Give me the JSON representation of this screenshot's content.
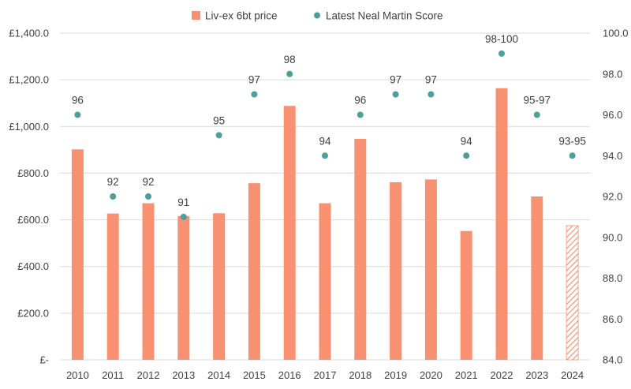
{
  "chart_data": {
    "type": "bar",
    "categories": [
      "2010",
      "2011",
      "2012",
      "2013",
      "2014",
      "2015",
      "2016",
      "2017",
      "2018",
      "2019",
      "2020",
      "2021",
      "2022",
      "2023",
      "2024"
    ],
    "series": [
      {
        "name": "Liv-ex 6bt price",
        "kind": "bar",
        "axis": "left",
        "color": "#F79172",
        "values": [
          902,
          627,
          671,
          616,
          628,
          757,
          1088,
          671,
          947,
          761,
          773,
          552,
          1164,
          700,
          575
        ],
        "patterned_last": true
      },
      {
        "name": "Latest Neal Martin Score",
        "kind": "scatter",
        "axis": "right",
        "color": "#4E9E9C",
        "values": [
          96,
          92,
          92,
          91,
          95,
          97,
          98,
          94,
          96,
          97,
          97,
          94,
          99,
          96,
          94
        ],
        "labels": [
          "96",
          "92",
          "92",
          "91",
          "95",
          "97",
          "98",
          "94",
          "96",
          "97",
          "97",
          "94",
          "98-100",
          "95-97",
          "93-95"
        ]
      }
    ],
    "left_axis": {
      "ylim": [
        0,
        1400
      ],
      "ticks": [
        0,
        200,
        400,
        600,
        800,
        1000,
        1200,
        1400
      ],
      "tick_labels": [
        "£-",
        "£200.0",
        "£400.0",
        "£600.0",
        "£800.0",
        "£1,000.0",
        "£1,200.0",
        "£1,400.0"
      ]
    },
    "right_axis": {
      "ylim": [
        84,
        100
      ],
      "ticks": [
        84,
        86,
        88,
        90,
        92,
        94,
        96,
        98,
        100
      ],
      "tick_labels": [
        "84.0",
        "86.0",
        "88.0",
        "90.0",
        "92.0",
        "94.0",
        "96.0",
        "98.0",
        "100.0"
      ]
    },
    "grid": true,
    "legend_position": "top",
    "legend": [
      "Liv-ex 6bt price",
      "Latest Neal Martin Score"
    ]
  }
}
